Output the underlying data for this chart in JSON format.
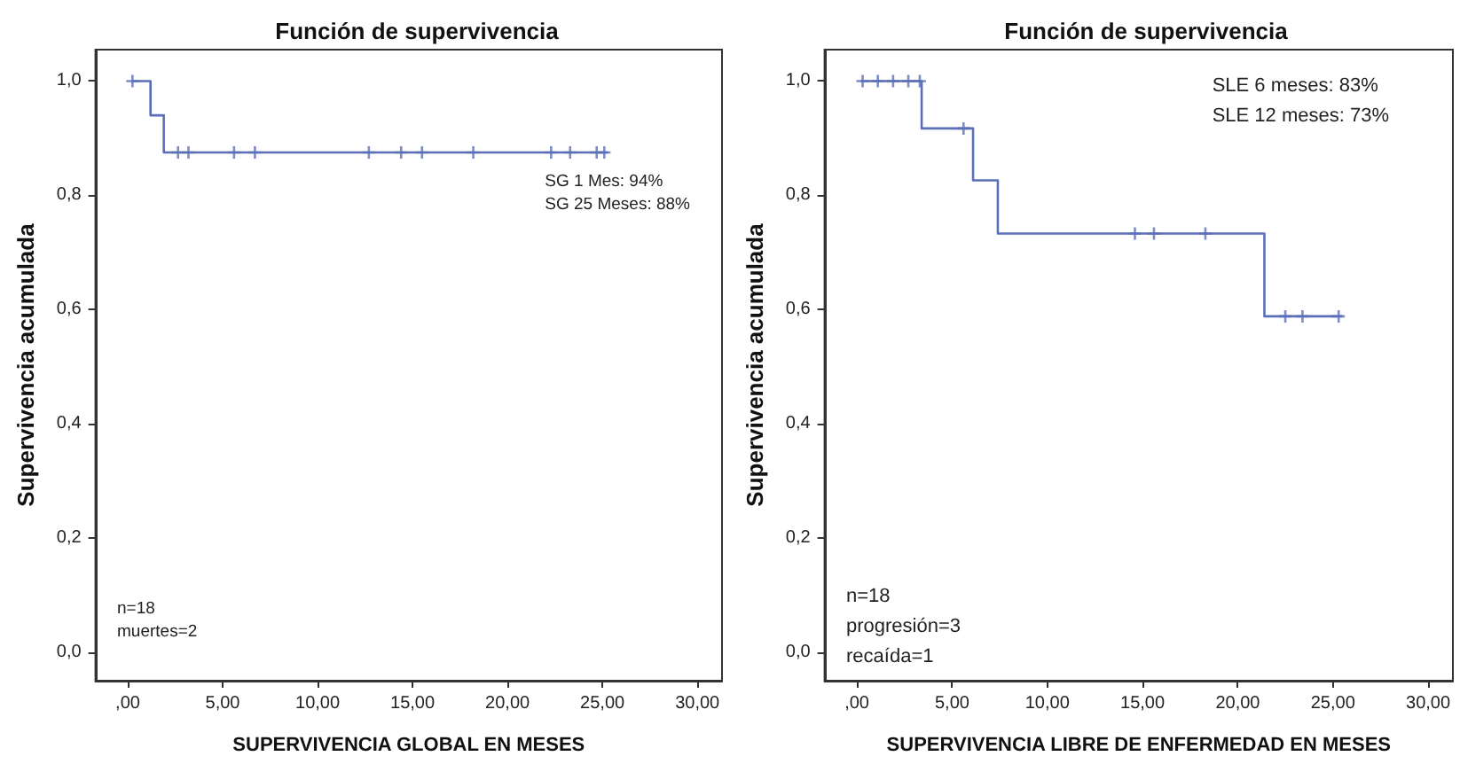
{
  "chart_data": [
    {
      "type": "step",
      "title": "Función de supervivencia",
      "xlabel": "SUPERVIVENCIA GLOBAL EN MESES",
      "ylabel": "Supervivencia acumulada",
      "annotations": [
        "SG 1 Mes: 94%\nSG 25 Meses: 88%",
        "n=18\nmuertes=2"
      ],
      "xlim": [
        -1.7,
        31.3
      ],
      "ylim": [
        -0.05,
        1.055
      ],
      "xticks": [
        {
          "value": 0,
          "label": ",00"
        },
        {
          "value": 5,
          "label": "5,00"
        },
        {
          "value": 10,
          "label": "10,00"
        },
        {
          "value": 15,
          "label": "15,00"
        },
        {
          "value": 20,
          "label": "20,00"
        },
        {
          "value": 25,
          "label": "25,00"
        },
        {
          "value": 30,
          "label": "30,00"
        }
      ],
      "yticks": [
        {
          "value": 0,
          "label": "0,0"
        },
        {
          "value": 0.2,
          "label": "0,2"
        },
        {
          "value": 0.4,
          "label": "0,4"
        },
        {
          "value": 0.6,
          "label": "0,6"
        },
        {
          "value": 0.8,
          "label": "0,8"
        },
        {
          "value": 1,
          "label": "1,0"
        }
      ],
      "grid": false,
      "series": [
        {
          "type": "step",
          "color": "#5a6fb8",
          "x": [
            0.2,
            1.2,
            1.9,
            25.3
          ],
          "values": [
            1,
            0.94,
            0.875,
            0.875
          ]
        },
        {
          "type": "scatter",
          "marker": "cross",
          "color": "#5a6fb8",
          "x": [
            0.25,
            2.65,
            3.2,
            5.6,
            6.7,
            12.7,
            14.4,
            15.5,
            18.2,
            22.3,
            23.3,
            24.7,
            25.1
          ],
          "values": [
            1,
            0.875,
            0.875,
            0.875,
            0.875,
            0.875,
            0.875,
            0.875,
            0.875,
            0.875,
            0.875,
            0.875,
            0.875
          ]
        }
      ]
    },
    {
      "type": "step",
      "title": "Función de supervivencia",
      "xlabel": "SUPERVIVENCIA LIBRE DE ENFERMEDAD EN MESES",
      "ylabel": "Supervivencia acumulada",
      "annotations": [
        "SLE 6 meses: 83%\nSLE 12 meses: 73%",
        "n=18\nprogresión=3\nrecaída=1"
      ],
      "xlim": [
        -1.7,
        31.3
      ],
      "ylim": [
        -0.05,
        1.055
      ],
      "xticks": [
        {
          "value": 0,
          "label": ",00"
        },
        {
          "value": 5,
          "label": "5,00"
        },
        {
          "value": 10,
          "label": "10,00"
        },
        {
          "value": 15,
          "label": "15,00"
        },
        {
          "value": 20,
          "label": "20,00"
        },
        {
          "value": 25,
          "label": "25,00"
        },
        {
          "value": 30,
          "label": "30,00"
        }
      ],
      "yticks": [
        {
          "value": 0,
          "label": "0,0"
        },
        {
          "value": 0.2,
          "label": "0,2"
        },
        {
          "value": 0.4,
          "label": "0,4"
        },
        {
          "value": 0.6,
          "label": "0,6"
        },
        {
          "value": 0.8,
          "label": "0,8"
        },
        {
          "value": 1,
          "label": "1,0"
        }
      ],
      "grid": false,
      "series": [
        {
          "type": "step",
          "color": "#5a6fb8",
          "x": [
            0.2,
            3.4,
            6.1,
            7.4,
            21.4,
            25.5
          ],
          "values": [
            1,
            0.917,
            0.826,
            0.733,
            0.588,
            0.588
          ]
        },
        {
          "type": "scatter",
          "marker": "cross",
          "color": "#5a6fb8",
          "x": [
            0.3,
            1.1,
            1.9,
            2.7,
            3.3,
            5.6,
            14.6,
            15.6,
            18.3,
            22.5,
            23.4,
            25.3
          ],
          "values": [
            1,
            1,
            1,
            1,
            1,
            0.917,
            0.733,
            0.733,
            0.733,
            0.588,
            0.588,
            0.588
          ]
        }
      ]
    }
  ]
}
